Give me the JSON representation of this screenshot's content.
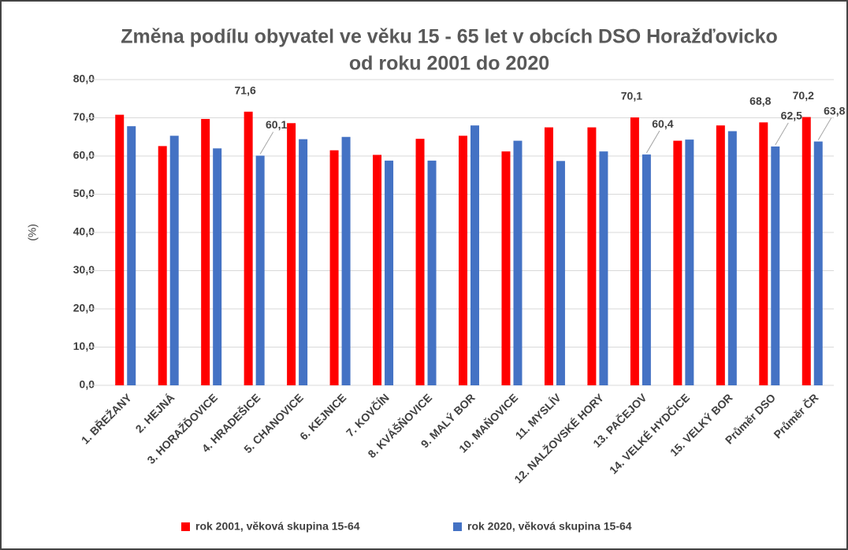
{
  "chart_data": {
    "type": "bar",
    "title": [
      "Změna podílu obyvatel ve věku 15 - 65 let v obcích DSO Horažďovicko",
      "od roku 2001 do 2020"
    ],
    "ylabel": "(%)",
    "categories": [
      "1. BŘEŽANY",
      "2. HEJNÁ",
      "3. HORAŽĎOVICE",
      "4. HRADEŠICE",
      "5. CHANOVICE",
      "6. KEJNICE",
      "7. KOVČÍN",
      "8. KVÁŠŇOVICE",
      "9. MALÝ BOR",
      "10. MAŇOVICE",
      "11. MYSLÍV",
      "12. NALŽOVSKÉ HORY",
      "13. PAČEJOV",
      "14. VELKÉ HYDČICE",
      "15. VELKÝ BOR",
      "Průměr DSO",
      "Průměr ČR"
    ],
    "series": [
      {
        "name": "rok 2001,  věková skupina 15-64",
        "color": "#ff0000",
        "values": [
          70.8,
          62.6,
          69.7,
          71.6,
          68.6,
          61.5,
          60.3,
          64.5,
          65.3,
          61.2,
          67.5,
          67.5,
          70.1,
          64.0,
          68.0,
          68.8,
          70.2
        ],
        "value_labels": [
          null,
          null,
          null,
          "71,6",
          null,
          null,
          null,
          null,
          null,
          null,
          null,
          null,
          "70,1",
          null,
          null,
          "68,8",
          "70,2"
        ]
      },
      {
        "name": "rok 2020,  věková skupina 15-64",
        "color": "#4472c4",
        "values": [
          67.8,
          65.3,
          62.0,
          60.1,
          64.4,
          65.0,
          58.8,
          58.8,
          68.0,
          64.0,
          58.7,
          61.2,
          60.4,
          64.3,
          66.5,
          62.5,
          63.8
        ],
        "value_labels": [
          null,
          null,
          null,
          "60,1",
          null,
          null,
          null,
          null,
          null,
          null,
          null,
          null,
          "60,4",
          null,
          null,
          "62,5",
          "63,8"
        ]
      }
    ],
    "ylim": [
      0,
      80
    ],
    "yticks": [
      {
        "value": 0,
        "label": "0,0"
      },
      {
        "value": 10,
        "label": "10,0"
      },
      {
        "value": 20,
        "label": "20,0"
      },
      {
        "value": 30,
        "label": "30,0"
      },
      {
        "value": 40,
        "label": "40,0"
      },
      {
        "value": 50,
        "label": "50,0"
      },
      {
        "value": 60,
        "label": "60,0"
      },
      {
        "value": 70,
        "label": "70,0"
      },
      {
        "value": 80,
        "label": "80,0"
      }
    ],
    "grid": true
  }
}
